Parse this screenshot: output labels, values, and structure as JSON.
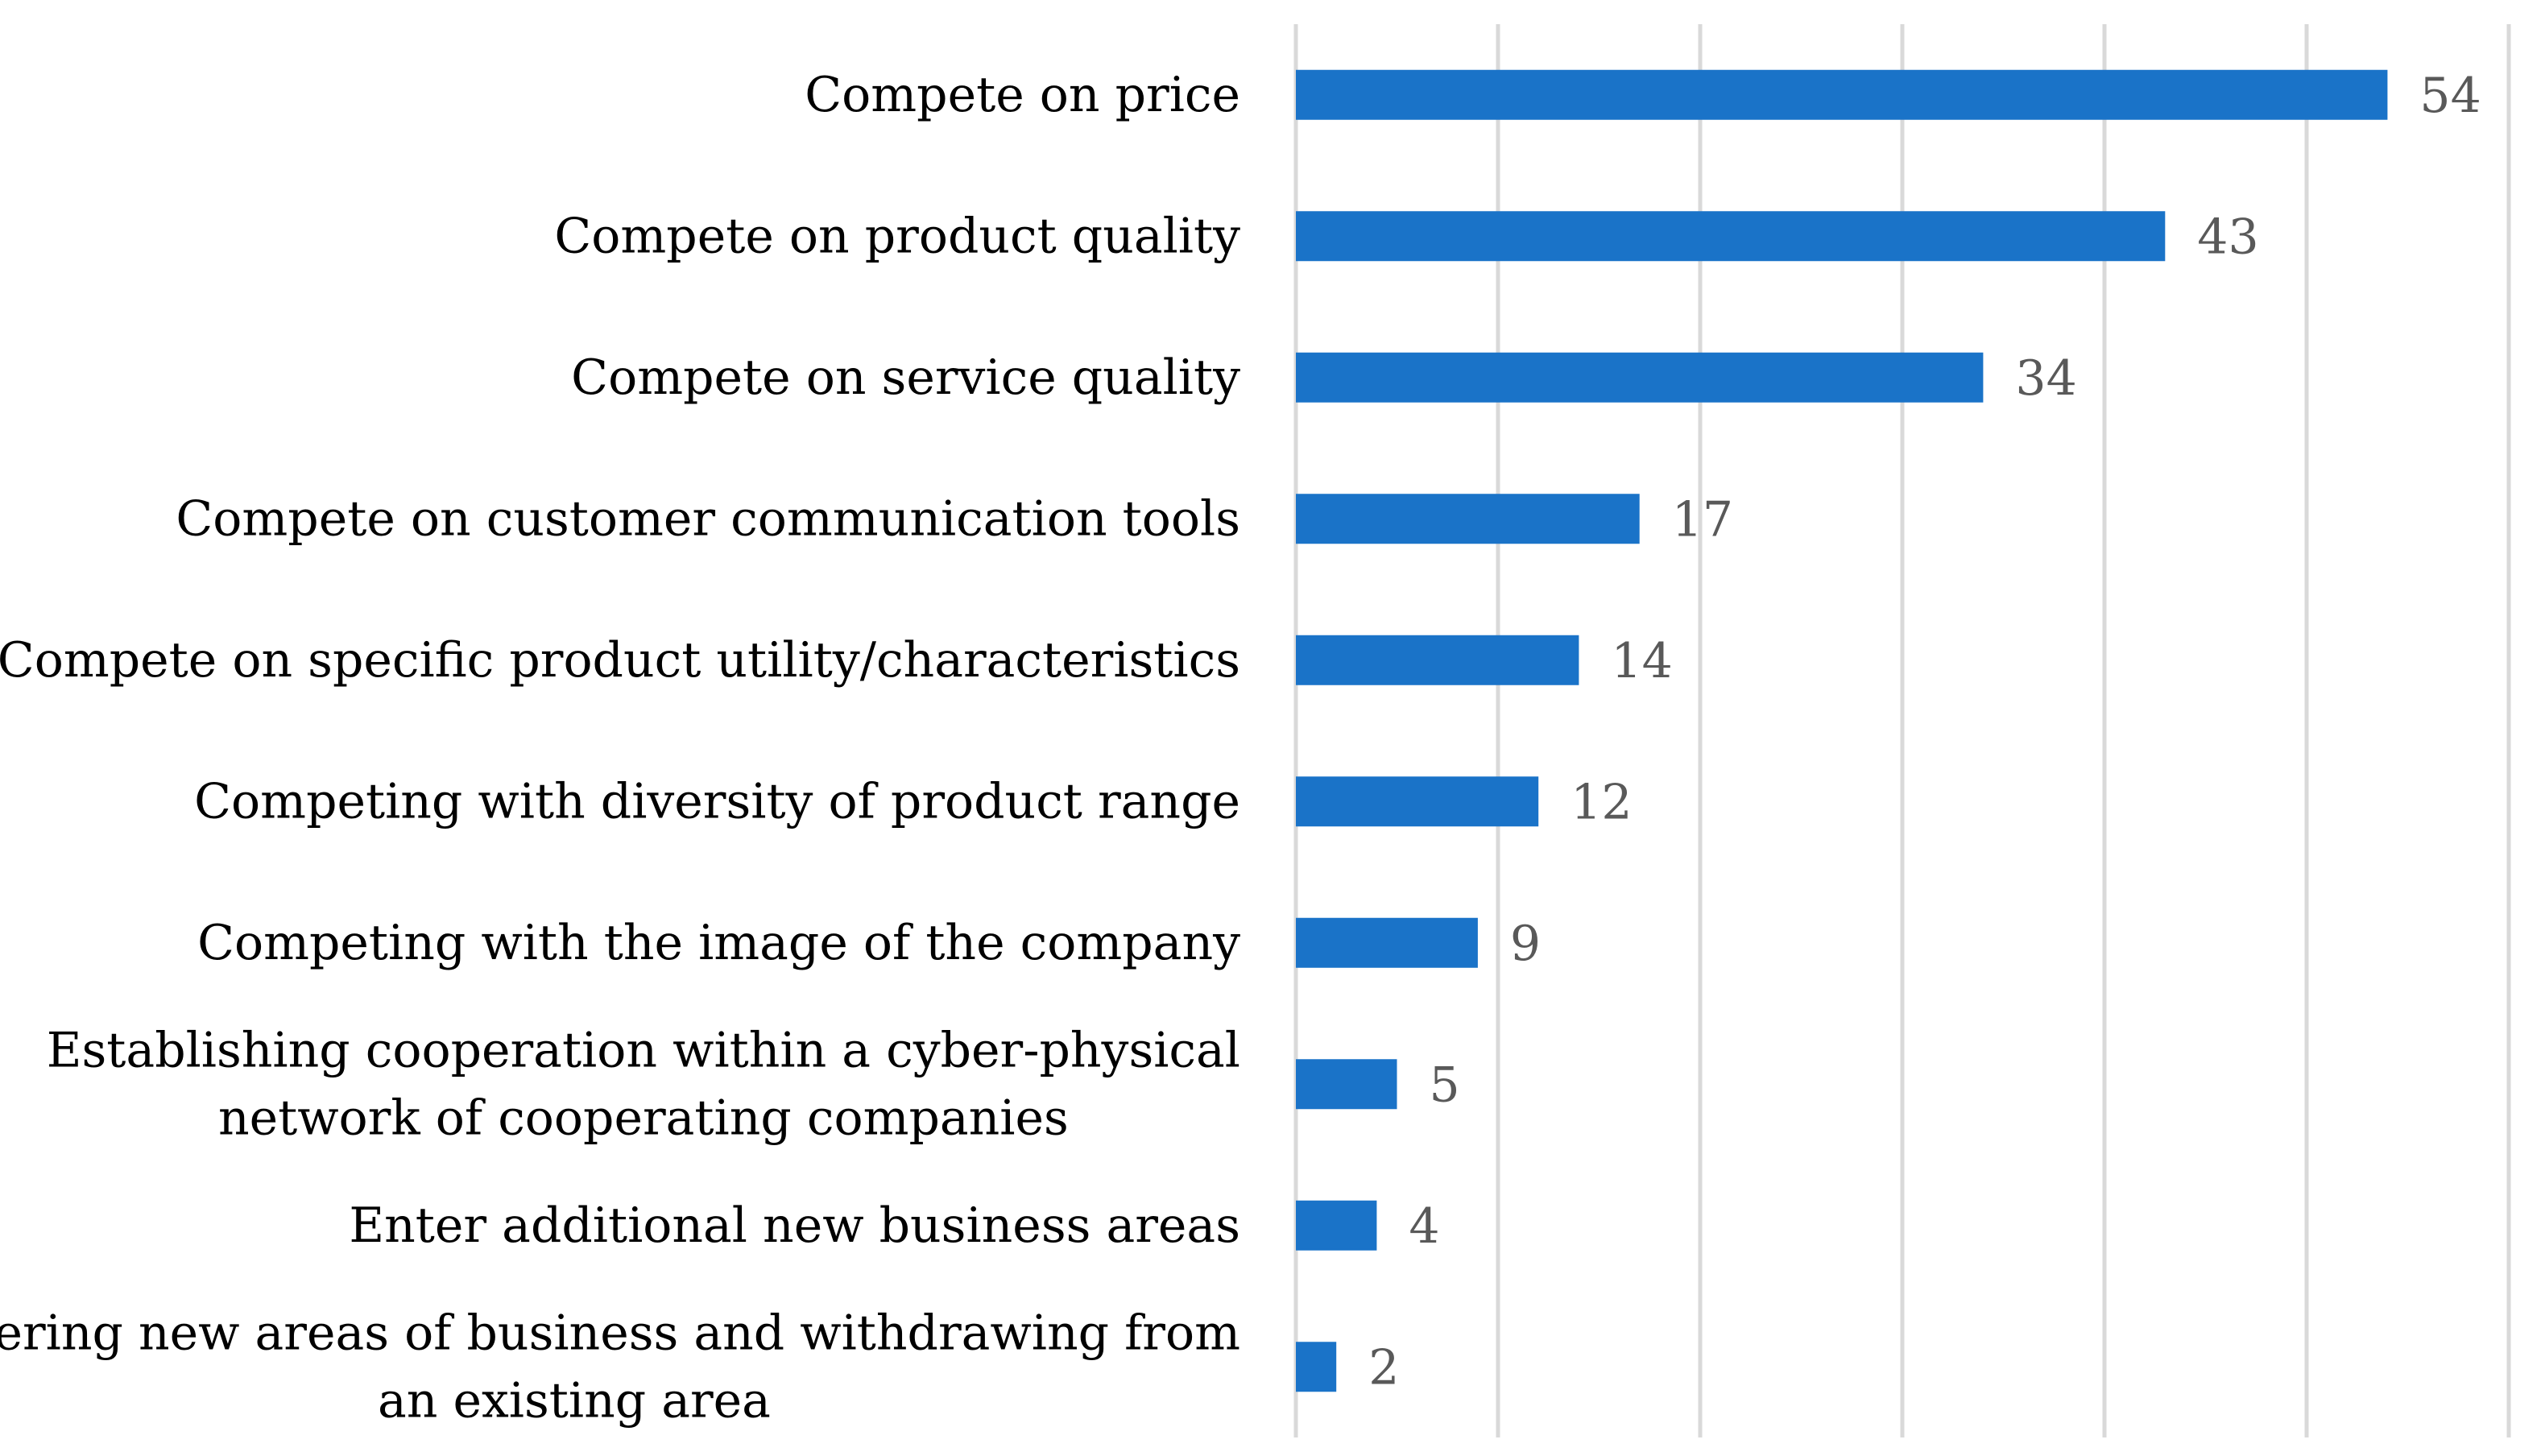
{
  "chart_data": {
    "type": "bar",
    "orientation": "horizontal",
    "title": "",
    "xlabel": "",
    "ylabel": "",
    "xlim": [
      0,
      60
    ],
    "grid": true,
    "tick_labels_visible": false,
    "data_labels": true,
    "bar_color": "#1a73c8",
    "categories": [
      "Compete on price",
      "Compete on product quality",
      "Compete on service quality",
      "Compete on customer communication tools",
      "Compete on specific product utility/characteristics",
      "Competing with diversity of product range",
      "Competing with the image of the company",
      "Establishing cooperation within a cyber-physical network of cooperating companies",
      "Enter additional new business areas",
      "Entering new areas of business and withdrawing from an existing area"
    ],
    "category_lines": [
      [
        "Compete on price"
      ],
      [
        "Compete on product quality"
      ],
      [
        "Compete on service quality"
      ],
      [
        "Compete on customer communication tools"
      ],
      [
        "Compete on specific product utility/characteristics"
      ],
      [
        "Competing with diversity of product range"
      ],
      [
        "Competing with the image of the company"
      ],
      [
        "Establishing cooperation within a cyber-physical",
        "network of cooperating companies"
      ],
      [
        "Enter additional new business areas"
      ],
      [
        "Entering new areas of business and withdrawing from",
        "an existing area"
      ]
    ],
    "values": [
      54,
      43,
      34,
      17,
      14,
      12,
      9,
      5,
      4,
      2
    ],
    "gridline_values": [
      0,
      10,
      20,
      30,
      40,
      50,
      60
    ]
  }
}
